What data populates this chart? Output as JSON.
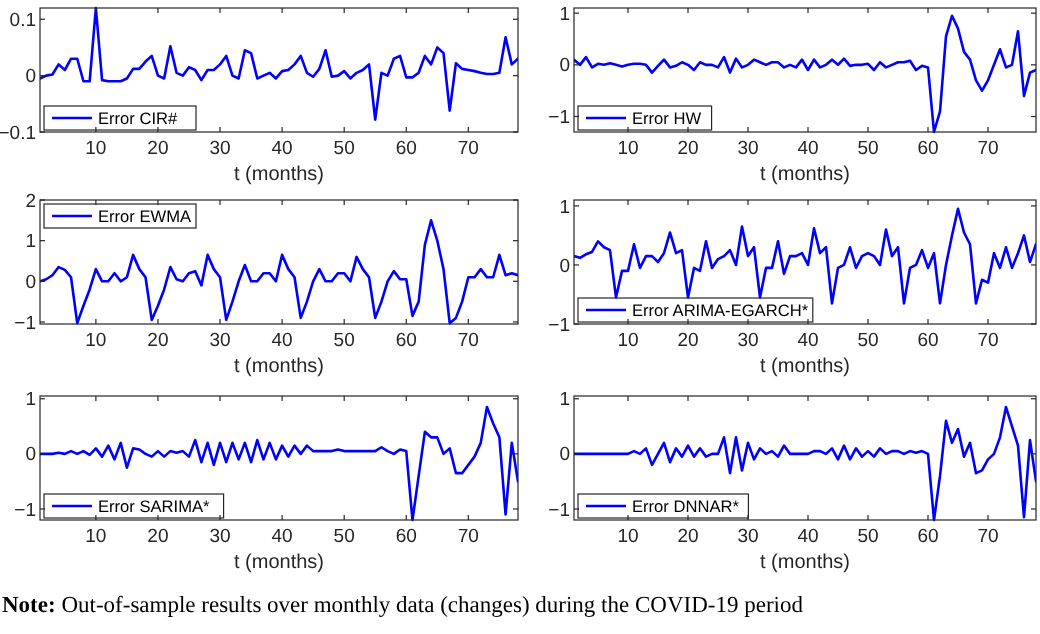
{
  "chart_data": [
    {
      "type": "line",
      "x": [
        1,
        2,
        3,
        4,
        5,
        6,
        7,
        8,
        9,
        10,
        11,
        12,
        13,
        14,
        15,
        16,
        17,
        18,
        19,
        20,
        21,
        22,
        23,
        24,
        25,
        26,
        27,
        28,
        29,
        30,
        31,
        32,
        33,
        34,
        35,
        36,
        37,
        38,
        39,
        40,
        41,
        42,
        43,
        44,
        45,
        46,
        47,
        48,
        49,
        50,
        51,
        52,
        53,
        54,
        55,
        56,
        57,
        58,
        59,
        60,
        61,
        62,
        63,
        64,
        65,
        66,
        67,
        68,
        69,
        70,
        71,
        72,
        73,
        74,
        75,
        76,
        77,
        78
      ],
      "xlim": [
        1,
        78
      ],
      "xticks": [
        10,
        20,
        30,
        40,
        50,
        60,
        70
      ],
      "ylim": [
        -0.1,
        0.12
      ],
      "yticks": [
        -0.1,
        0,
        0.1
      ],
      "xlabel": "t (months)",
      "legend": "bottom left",
      "series": [
        {
          "name": "Error CIR#",
          "color": "#0000ff",
          "values": [
            -0.005,
            0,
            0.002,
            0.02,
            0.01,
            0.03,
            0.03,
            -0.01,
            -0.01,
            0.12,
            -0.008,
            -0.01,
            -0.01,
            -0.01,
            -0.005,
            0.012,
            0.012,
            0.025,
            0.035,
            0,
            -0.005,
            0.052,
            0.005,
            0,
            0.015,
            0.01,
            -0.008,
            0.01,
            0.01,
            0.02,
            0.035,
            0,
            -0.005,
            0.045,
            0.04,
            -0.005,
            0,
            0.005,
            -0.005,
            0.008,
            0.01,
            0.02,
            0.035,
            0.005,
            -0.002,
            0.012,
            0.045,
            -0.002,
            0,
            0.008,
            -0.005,
            0.005,
            0.01,
            0.02,
            -0.078,
            0.005,
            0,
            0.03,
            0.035,
            -0.003,
            -0.003,
            0.005,
            0.035,
            0.02,
            0.05,
            0.04,
            -0.062,
            0.022,
            0.012,
            0.01,
            0.008,
            0.005,
            0.003,
            0.003,
            0.005,
            0.068,
            0.02,
            0.03
          ]
        }
      ]
    },
    {
      "type": "line",
      "x": [
        1,
        2,
        3,
        4,
        5,
        6,
        7,
        8,
        9,
        10,
        11,
        12,
        13,
        14,
        15,
        16,
        17,
        18,
        19,
        20,
        21,
        22,
        23,
        24,
        25,
        26,
        27,
        28,
        29,
        30,
        31,
        32,
        33,
        34,
        35,
        36,
        37,
        38,
        39,
        40,
        41,
        42,
        43,
        44,
        45,
        46,
        47,
        48,
        49,
        50,
        51,
        52,
        53,
        54,
        55,
        56,
        57,
        58,
        59,
        60,
        61,
        62,
        63,
        64,
        65,
        66,
        67,
        68,
        69,
        70,
        71,
        72,
        73,
        74,
        75,
        76,
        77,
        78
      ],
      "xlim": [
        1,
        78
      ],
      "xticks": [
        10,
        20,
        30,
        40,
        50,
        60,
        70
      ],
      "ylim": [
        -1.3,
        1.1
      ],
      "yticks": [
        -1,
        0,
        1
      ],
      "xlabel": "t (months)",
      "legend": "bottom left",
      "series": [
        {
          "name": "Error HW",
          "color": "#0000ff",
          "values": [
            0.1,
            0,
            0.15,
            -0.05,
            0.02,
            0,
            0.03,
            0,
            -0.03,
            0,
            0.02,
            0.02,
            0,
            -0.15,
            -0.02,
            0.1,
            -0.05,
            -0.02,
            0.05,
            0,
            -0.1,
            0.05,
            0,
            0,
            -0.05,
            0.15,
            -0.15,
            0.12,
            -0.05,
            0,
            0.1,
            0.05,
            0,
            0.05,
            0.05,
            -0.05,
            0,
            -0.05,
            0.1,
            -0.1,
            0.1,
            -0.05,
            0,
            0.1,
            0,
            0.12,
            -0.02,
            0,
            0,
            0.02,
            -0.1,
            0.05,
            -0.05,
            0,
            0.05,
            0.05,
            0.08,
            -0.1,
            -0.02,
            -0.05,
            -1.3,
            -0.9,
            0.55,
            0.95,
            0.7,
            0.25,
            0.1,
            -0.3,
            -0.5,
            -0.3,
            0,
            0.3,
            -0.05,
            0,
            0.65,
            -0.6,
            -0.15,
            -0.1
          ]
        }
      ]
    },
    {
      "type": "line",
      "x": [
        1,
        2,
        3,
        4,
        5,
        6,
        7,
        8,
        9,
        10,
        11,
        12,
        13,
        14,
        15,
        16,
        17,
        18,
        19,
        20,
        21,
        22,
        23,
        24,
        25,
        26,
        27,
        28,
        29,
        30,
        31,
        32,
        33,
        34,
        35,
        36,
        37,
        38,
        39,
        40,
        41,
        42,
        43,
        44,
        45,
        46,
        47,
        48,
        49,
        50,
        51,
        52,
        53,
        54,
        55,
        56,
        57,
        58,
        59,
        60,
        61,
        62,
        63,
        64,
        65,
        66,
        67,
        68,
        69,
        70,
        71,
        72,
        73,
        74,
        75,
        76,
        77,
        78
      ],
      "xlim": [
        1,
        78
      ],
      "xticks": [
        10,
        20,
        30,
        40,
        50,
        60,
        70
      ],
      "ylim": [
        -1.05,
        2
      ],
      "yticks": [
        -1,
        0,
        1,
        2
      ],
      "xlabel": "t (months)",
      "legend": "top left",
      "series": [
        {
          "name": "Error EWMA",
          "color": "#0000ff",
          "values": [
            0,
            0.05,
            0.15,
            0.35,
            0.28,
            0.1,
            -1.03,
            -0.6,
            -0.2,
            0.3,
            0,
            0,
            0.2,
            0,
            0.1,
            0.65,
            0.3,
            0.1,
            -0.95,
            -0.6,
            -0.2,
            0.35,
            0.05,
            0,
            0.2,
            0.25,
            -0.1,
            0.65,
            0.3,
            0.1,
            -0.95,
            -0.5,
            0,
            0.4,
            0,
            0,
            0.2,
            0.2,
            0,
            0.65,
            0.3,
            0.1,
            -0.9,
            -0.5,
            0,
            0.3,
            0,
            0,
            0.2,
            0.2,
            0,
            0.6,
            0.3,
            0.1,
            -0.9,
            -0.5,
            0,
            0.25,
            0.05,
            0.05,
            -0.85,
            -0.5,
            0.9,
            1.5,
            1.0,
            0.3,
            -1.03,
            -0.9,
            -0.5,
            0.1,
            0.1,
            0.3,
            0.1,
            0.1,
            0.65,
            0.15,
            0.2,
            0.15
          ]
        }
      ]
    },
    {
      "type": "line",
      "x": [
        1,
        2,
        3,
        4,
        5,
        6,
        7,
        8,
        9,
        10,
        11,
        12,
        13,
        14,
        15,
        16,
        17,
        18,
        19,
        20,
        21,
        22,
        23,
        24,
        25,
        26,
        27,
        28,
        29,
        30,
        31,
        32,
        33,
        34,
        35,
        36,
        37,
        38,
        39,
        40,
        41,
        42,
        43,
        44,
        45,
        46,
        47,
        48,
        49,
        50,
        51,
        52,
        53,
        54,
        55,
        56,
        57,
        58,
        59,
        60,
        61,
        62,
        63,
        64,
        65,
        66,
        67,
        68,
        69,
        70,
        71,
        72,
        73,
        74,
        75,
        76,
        77,
        78
      ],
      "xlim": [
        1,
        78
      ],
      "xticks": [
        10,
        20,
        30,
        40,
        50,
        60,
        70
      ],
      "ylim": [
        -1,
        1.1
      ],
      "yticks": [
        -1,
        0,
        1
      ],
      "xlabel": "t (months)",
      "legend": "bottom left",
      "series": [
        {
          "name": "Error ARIMA-EGARCH*",
          "color": "#0000ff",
          "values": [
            0.15,
            0.12,
            0.18,
            0.22,
            0.4,
            0.3,
            0.25,
            -0.55,
            -0.1,
            -0.1,
            0.35,
            -0.05,
            0.15,
            0.15,
            0.05,
            0.2,
            0.55,
            0.2,
            0.25,
            -0.55,
            -0.05,
            -0.1,
            0.4,
            -0.05,
            0.1,
            0.15,
            0.25,
            0,
            0.65,
            0.15,
            0.3,
            -0.55,
            -0.05,
            -0.05,
            0.4,
            -0.15,
            0.15,
            0.15,
            0.2,
            0,
            0.62,
            0.2,
            0.3,
            -0.65,
            -0.05,
            0,
            0.3,
            -0.05,
            0.15,
            0.2,
            0.15,
            0,
            0.6,
            0.15,
            0.3,
            -0.65,
            -0.05,
            0,
            0.25,
            -0.05,
            0.2,
            -0.65,
            0,
            0.5,
            0.95,
            0.55,
            0.35,
            -0.65,
            -0.25,
            -0.3,
            0.2,
            -0.05,
            0.3,
            -0.05,
            0.2,
            0.5,
            0.05,
            0.35
          ]
        }
      ]
    },
    {
      "type": "line",
      "x": [
        1,
        2,
        3,
        4,
        5,
        6,
        7,
        8,
        9,
        10,
        11,
        12,
        13,
        14,
        15,
        16,
        17,
        18,
        19,
        20,
        21,
        22,
        23,
        24,
        25,
        26,
        27,
        28,
        29,
        30,
        31,
        32,
        33,
        34,
        35,
        36,
        37,
        38,
        39,
        40,
        41,
        42,
        43,
        44,
        45,
        46,
        47,
        48,
        49,
        50,
        51,
        52,
        53,
        54,
        55,
        56,
        57,
        58,
        59,
        60,
        61,
        62,
        63,
        64,
        65,
        66,
        67,
        68,
        69,
        70,
        71,
        72,
        73,
        74,
        75,
        76,
        77,
        78
      ],
      "xlim": [
        1,
        78
      ],
      "xticks": [
        10,
        20,
        30,
        40,
        50,
        60,
        70
      ],
      "ylim": [
        -1.2,
        1.05
      ],
      "yticks": [
        -1,
        0,
        1
      ],
      "xlabel": "t (months)",
      "legend": "bottom left",
      "series": [
        {
          "name": "Error SARIMA*",
          "color": "#0000ff",
          "values": [
            0,
            0,
            0,
            0.02,
            0,
            0.05,
            0,
            0.05,
            -0.02,
            0.1,
            -0.05,
            0.15,
            -0.1,
            0.2,
            -0.25,
            0.1,
            0.08,
            0,
            -0.05,
            0.05,
            -0.05,
            0.05,
            0.02,
            0.05,
            -0.05,
            0.25,
            -0.15,
            0.2,
            -0.2,
            0.2,
            -0.15,
            0.2,
            -0.1,
            0.2,
            -0.15,
            0.25,
            -0.1,
            0.2,
            -0.1,
            0.15,
            -0.05,
            0.15,
            0,
            0.15,
            0.05,
            0.05,
            0.05,
            0.05,
            0.08,
            0.05,
            0.05,
            0.05,
            0.05,
            0.05,
            0.05,
            0.12,
            0.05,
            0,
            0.08,
            0.05,
            -1.2,
            -0.4,
            0.4,
            0.3,
            0.3,
            0,
            0.1,
            -0.35,
            -0.35,
            -0.2,
            -0.05,
            0.2,
            0.85,
            0.55,
            0.3,
            -1.1,
            0.2,
            -0.5
          ]
        }
      ]
    },
    {
      "type": "line",
      "x": [
        1,
        2,
        3,
        4,
        5,
        6,
        7,
        8,
        9,
        10,
        11,
        12,
        13,
        14,
        15,
        16,
        17,
        18,
        19,
        20,
        21,
        22,
        23,
        24,
        25,
        26,
        27,
        28,
        29,
        30,
        31,
        32,
        33,
        34,
        35,
        36,
        37,
        38,
        39,
        40,
        41,
        42,
        43,
        44,
        45,
        46,
        47,
        48,
        49,
        50,
        51,
        52,
        53,
        54,
        55,
        56,
        57,
        58,
        59,
        60,
        61,
        62,
        63,
        64,
        65,
        66,
        67,
        68,
        69,
        70,
        71,
        72,
        73,
        74,
        75,
        76,
        77,
        78
      ],
      "xlim": [
        1,
        78
      ],
      "xticks": [
        10,
        20,
        30,
        40,
        50,
        60,
        70
      ],
      "ylim": [
        -1.2,
        1.05
      ],
      "yticks": [
        -1,
        0,
        1
      ],
      "xlabel": "t (months)",
      "legend": "bottom left",
      "annotations": [
        "Note: Out-of-sample results over monthly data (changes) during the COVID-19 period"
      ],
      "series": [
        {
          "name": "Error DNNAR*",
          "color": "#0000ff",
          "values": [
            0,
            0,
            0,
            0,
            0,
            0,
            0,
            0,
            0,
            0,
            0.05,
            0,
            0.1,
            -0.2,
            0,
            0.2,
            -0.15,
            0.1,
            -0.05,
            0.15,
            -0.05,
            0.1,
            -0.05,
            0,
            0,
            0.3,
            -0.35,
            0.3,
            -0.3,
            0.2,
            -0.1,
            0.1,
            0,
            0.05,
            -0.05,
            0.15,
            0,
            0,
            0,
            0,
            0.05,
            0.05,
            0,
            0.1,
            -0.1,
            0.15,
            -0.1,
            0.1,
            -0.05,
            0.05,
            -0.05,
            0.1,
            0,
            0.05,
            0.05,
            0,
            0.05,
            0.02,
            0.05,
            0,
            -1.2,
            -0.4,
            0.6,
            0.2,
            0.45,
            -0.05,
            0.2,
            -0.35,
            -0.3,
            -0.1,
            0,
            0.3,
            0.85,
            0.5,
            0.15,
            -1.15,
            0.25,
            -0.5
          ]
        }
      ]
    }
  ]
}
